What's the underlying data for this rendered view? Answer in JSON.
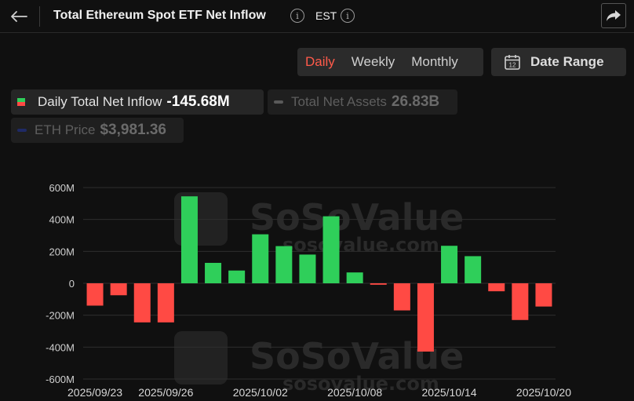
{
  "header": {
    "title": "Total Ethereum Spot ETF Net Inflow",
    "timezone": "EST",
    "info_symbol": "i"
  },
  "toolbar": {
    "tabs": [
      {
        "label": "Daily",
        "active": true
      },
      {
        "label": "Weekly",
        "active": false
      },
      {
        "label": "Monthly",
        "active": false
      }
    ],
    "date_range_label": "Date Range",
    "calendar_day": "12"
  },
  "legend": {
    "items": [
      {
        "label": "Daily Total Net Inflow",
        "value": "-145.68M",
        "active": true
      },
      {
        "label": "Total Net Assets",
        "value": "26.83B",
        "active": false,
        "color": "#5a5a5a"
      },
      {
        "label": "ETH Price",
        "value": "$3,981.36",
        "active": false,
        "color": "#1f2a66"
      }
    ]
  },
  "watermark": {
    "brand": "SoSoValue",
    "url": "sosovalue.com"
  },
  "colors": {
    "positive": "#2fcf5a",
    "negative": "#ff4a44",
    "accent": "#ff5a4a"
  },
  "chart_data": {
    "type": "bar",
    "series": [
      {
        "name": "Daily Total Net Inflow",
        "values": [
          -140,
          -75,
          -245,
          -245,
          545,
          128,
          80,
          307,
          233,
          180,
          420,
          68,
          -9,
          -170,
          -428,
          235,
          170,
          -50,
          -230,
          -145.68
        ]
      }
    ],
    "categories": [
      "2025/09/23",
      "2025/09/24",
      "2025/09/25",
      "2025/09/26",
      "2025/09/29",
      "2025/09/30",
      "2025/10/01",
      "2025/10/02",
      "2025/10/03",
      "2025/10/06",
      "2025/10/07",
      "2025/10/08",
      "2025/10/09",
      "2025/10/10",
      "2025/10/13",
      "2025/10/14",
      "2025/10/15",
      "2025/10/16",
      "2025/10/17",
      "2025/10/20"
    ],
    "x_tick_labels": [
      "2025/09/23",
      "2025/09/26",
      "2025/10/02",
      "2025/10/08",
      "2025/10/14",
      "2025/10/20"
    ],
    "y_ticks": [
      -600,
      -400,
      -200,
      0,
      200,
      400,
      600
    ],
    "y_tick_labels": [
      "-600M",
      "-400M",
      "-200M",
      "0",
      "200M",
      "400M",
      "600M"
    ],
    "ylim": [
      -600,
      600
    ],
    "unit": "M",
    "grid": true
  }
}
